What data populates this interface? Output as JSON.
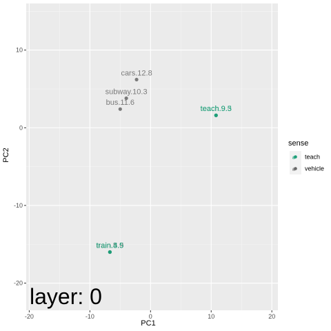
{
  "chart_data": {
    "type": "scatter",
    "xlabel": "PC1",
    "ylabel": "PC2",
    "xlim": [
      -20.5,
      21
    ],
    "ylim": [
      -23.5,
      16
    ],
    "x_ticks": [
      -20,
      -10,
      0,
      10,
      20
    ],
    "y_ticks": [
      -20,
      -10,
      0,
      10
    ],
    "grid": true,
    "annotation": "layer: 0",
    "legend": {
      "title": "sense",
      "placement": "right",
      "entries": [
        {
          "name": "teach",
          "color": "#1b9e77"
        },
        {
          "name": "vehicle",
          "color": "#666666"
        }
      ]
    },
    "points": [
      {
        "label": "cars.12.8",
        "x": -2.3,
        "y": 6.2,
        "sense": "vehicle"
      },
      {
        "label": "subway.10.3",
        "x": -4.0,
        "y": 3.8,
        "sense": "vehicle"
      },
      {
        "label": "bus.11.6",
        "x": -5.0,
        "y": 2.4,
        "sense": "vehicle"
      },
      {
        "label": "teach.9.5",
        "x": 10.8,
        "y": 1.6,
        "sense": "teach"
      },
      {
        "label": "teach.9.3",
        "x": 10.8,
        "y": 1.6,
        "sense": "teach"
      },
      {
        "label": "train.5.9",
        "x": -6.7,
        "y": -16.0,
        "sense": "vehicle"
      },
      {
        "label": "train.3.5",
        "x": -6.7,
        "y": -16.0,
        "sense": "teach"
      },
      {
        "label": "train.4.5",
        "x": -6.7,
        "y": -16.0,
        "sense": "teach"
      }
    ]
  }
}
